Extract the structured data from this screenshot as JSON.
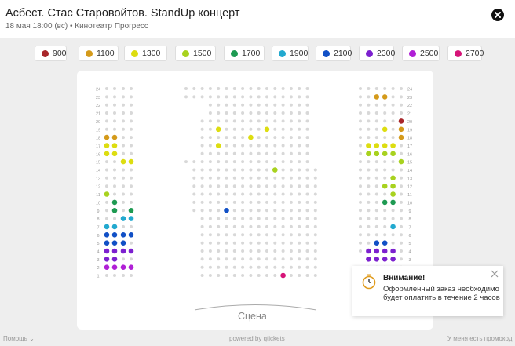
{
  "header": {
    "title": "Асбест. Стас Старовойтов. StandUp концерт",
    "subtitle": "18 мая 18:00 (вс) • Кинотеатр Прогресс"
  },
  "legend": [
    {
      "price": "900",
      "color": "#a8262a"
    },
    {
      "price": "1100",
      "color": "#d49a1a"
    },
    {
      "price": "1300",
      "color": "#dddd10"
    },
    {
      "price": "1500",
      "color": "#a8d21f"
    },
    {
      "price": "1700",
      "color": "#1e9a52"
    },
    {
      "price": "1900",
      "color": "#22a9cf"
    },
    {
      "price": "2100",
      "color": "#1150c6"
    },
    {
      "price": "2300",
      "color": "#7c20cf"
    },
    {
      "price": "2500",
      "color": "#b020d6"
    },
    {
      "price": "2700",
      "color": "#d61478"
    }
  ],
  "rows": [
    "24",
    "23",
    "22",
    "21",
    "20",
    "19",
    "18",
    "17",
    "16",
    "15",
    "14",
    "13",
    "12",
    "11",
    "10",
    "9",
    "8",
    "7",
    "6",
    "5",
    "4",
    "3",
    "2",
    "1"
  ],
  "stage": "Сцена",
  "notice": {
    "title": "Внимание!",
    "text": "Оформленный заказ необходимо будет оплатить в течение 2 часов"
  },
  "footer": {
    "help": "Помощь",
    "powered": "powered by qtickets",
    "promo": "У меня есть промокод"
  }
}
